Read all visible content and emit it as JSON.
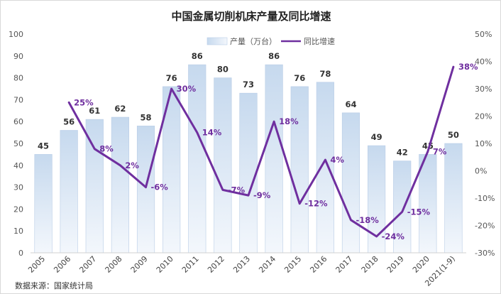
{
  "chart_data": {
    "type": "bar+line",
    "title": "中国金属切削机床产量及同比增速",
    "categories": [
      "2005",
      "2006",
      "2007",
      "2008",
      "2009",
      "2010",
      "2011",
      "2012",
      "2013",
      "2014",
      "2015",
      "2016",
      "2017",
      "2018",
      "2019",
      "2020",
      "2021(1-9)"
    ],
    "series": [
      {
        "name": "产量（万台）",
        "type": "bar",
        "axis": "left",
        "values": [
          45,
          56,
          61,
          62,
          58,
          76,
          86,
          80,
          73,
          86,
          76,
          78,
          64,
          49,
          42,
          45,
          50
        ]
      },
      {
        "name": "同比增速",
        "type": "line",
        "axis": "right",
        "values": [
          null,
          25,
          8,
          2,
          -6,
          30,
          14,
          -7,
          -9,
          18,
          -12,
          4,
          -18,
          -24,
          -15,
          7,
          38
        ],
        "labels": [
          "",
          "25%",
          "8%",
          "2%",
          "-6%",
          "30%",
          "14%",
          "-7%",
          "-9%",
          "18%",
          "-12%",
          "4%",
          "-18%",
          "-24%",
          "-15%",
          "7%",
          "38%"
        ]
      }
    ],
    "y_left": {
      "min": 0,
      "max": 100,
      "step": 10,
      "ticks": [
        "0",
        "10",
        "20",
        "30",
        "40",
        "50",
        "60",
        "70",
        "80",
        "90",
        "100"
      ]
    },
    "y_right": {
      "min": -30,
      "max": 50,
      "step": 10,
      "ticks": [
        "-30%",
        "-20%",
        "-10%",
        "0%",
        "10%",
        "20%",
        "30%",
        "40%",
        "50%"
      ]
    },
    "legend_position": "top-center",
    "grid": false,
    "colors": {
      "bar_top": "#c6d9ee",
      "bar_bottom": "#f3f7fc",
      "bar_border": "#b9cde6",
      "line": "#6f2f9f",
      "growth_label": "#6f2f9f"
    },
    "source": "数据来源：国家统计局"
  }
}
